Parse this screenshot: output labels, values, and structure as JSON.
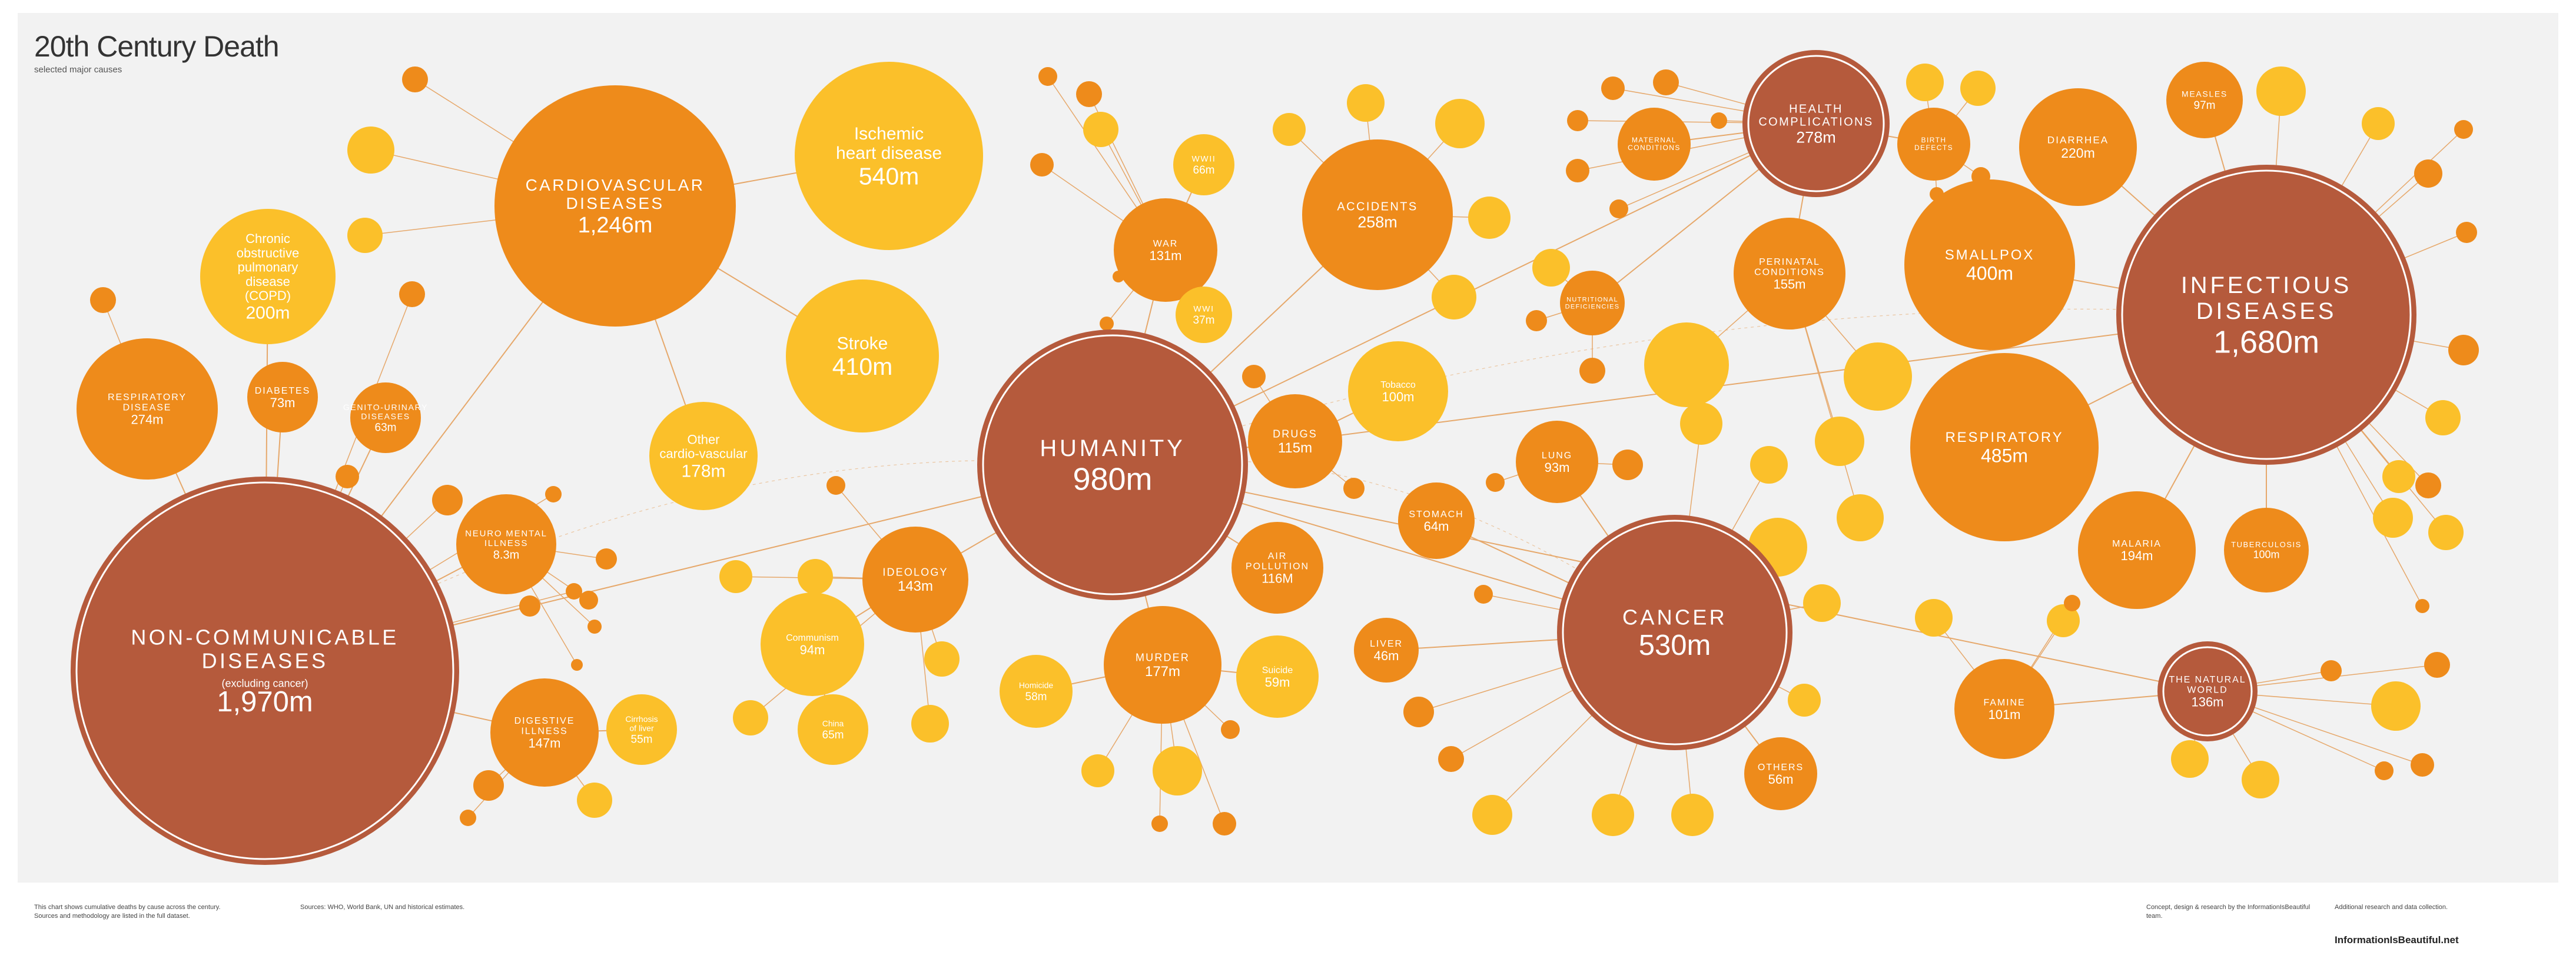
{
  "title": "20th Century Death",
  "subtitle": "selected major causes",
  "colors": {
    "dark": "#b55a3c",
    "orange": "#ee8b1b",
    "yellow": "#fbc02a",
    "link": "#e6a86b",
    "text_dark": "#ffffff",
    "text_light": "#ffffff"
  },
  "chart_data": {
    "type": "bubble",
    "nodes": [
      {
        "id": "humanity",
        "label": "HUMANITY",
        "value": "980m",
        "tier": "root"
      },
      {
        "id": "ncd",
        "label": "NON-COMMUNICABLE DISEASES",
        "sublabel": "(excluding cancer)",
        "value": "1,970m",
        "parent": "humanity",
        "tier": "major"
      },
      {
        "id": "cvd",
        "label": "CARDIOVASCULAR DISEASES",
        "value": "1,246m",
        "parent": "ncd",
        "tier": "mid"
      },
      {
        "id": "ihd",
        "label": "Ischemic heart disease",
        "value": "540m",
        "parent": "cvd",
        "tier": "minor"
      },
      {
        "id": "stroke",
        "label": "Stroke",
        "value": "410m",
        "parent": "cvd",
        "tier": "minor"
      },
      {
        "id": "othcv",
        "label": "Other cardio-vascular",
        "value": "178m",
        "parent": "cvd",
        "tier": "minor"
      },
      {
        "id": "copd",
        "label": "Chronic obstructive pulmonary disease (COPD)",
        "value": "200m",
        "parent": "ncd",
        "tier": "minor"
      },
      {
        "id": "resp_dis",
        "label": "RESPIRATORY DISEASE",
        "value": "274m",
        "parent": "ncd",
        "tier": "mid"
      },
      {
        "id": "diabetes",
        "label": "DIABETES",
        "value": "73m",
        "parent": "ncd",
        "tier": "mid"
      },
      {
        "id": "genito",
        "label": "GENITO-URINARY DISEASES",
        "value": "63m",
        "parent": "ncd",
        "tier": "mid"
      },
      {
        "id": "neuro",
        "label": "NEURO MENTAL ILLNESS",
        "value": "8.3m",
        "parent": "ncd",
        "tier": "mid"
      },
      {
        "id": "digest",
        "label": "DIGESTIVE ILLNESS",
        "value": "147m",
        "parent": "ncd",
        "tier": "mid"
      },
      {
        "id": "cirrh",
        "label": "Cirrhosis of liver",
        "value": "55m",
        "parent": "digest",
        "tier": "minor"
      },
      {
        "id": "inf",
        "label": "INFECTIOUS DISEASES",
        "value": "1,680m",
        "parent": "humanity",
        "tier": "major"
      },
      {
        "id": "smallpox",
        "label": "SMALLPOX",
        "value": "400m",
        "parent": "inf",
        "tier": "mid"
      },
      {
        "id": "respinf",
        "label": "RESPIRATORY",
        "value": "485m",
        "parent": "inf",
        "tier": "mid"
      },
      {
        "id": "diarrhea",
        "label": "DIARRHEA",
        "value": "220m",
        "parent": "inf",
        "tier": "mid"
      },
      {
        "id": "measles",
        "label": "MEASLES",
        "value": "97m",
        "parent": "inf",
        "tier": "mid"
      },
      {
        "id": "malaria",
        "label": "MALARIA",
        "value": "194m",
        "parent": "inf",
        "tier": "mid"
      },
      {
        "id": "tb",
        "label": "TUBERCULOSIS",
        "value": "100m",
        "parent": "inf",
        "tier": "mid"
      },
      {
        "id": "cancer",
        "label": "CANCER",
        "value": "530m",
        "parent": "humanity",
        "tier": "major"
      },
      {
        "id": "lung",
        "label": "LUNG",
        "value": "93m",
        "parent": "cancer",
        "tier": "mid"
      },
      {
        "id": "stomach",
        "label": "STOMACH",
        "value": "64m",
        "parent": "cancer",
        "tier": "mid"
      },
      {
        "id": "liver",
        "label": "LIVER",
        "value": "46m",
        "parent": "cancer",
        "tier": "mid"
      },
      {
        "id": "others",
        "label": "OTHERS",
        "value": "56m",
        "parent": "cancer",
        "tier": "mid"
      },
      {
        "id": "health",
        "label": "HEALTH COMPLICATIONS",
        "value": "278m",
        "parent": "humanity",
        "tier": "mid_dark"
      },
      {
        "id": "perinatal",
        "label": "PERINATAL CONDITIONS",
        "value": "155m",
        "parent": "health",
        "tier": "mid"
      },
      {
        "id": "maternal",
        "label": "MATERNAL CONDITIONS",
        "value": "",
        "parent": "health",
        "tier": "mid"
      },
      {
        "id": "birth",
        "label": "BIRTH DEFECTS",
        "value": "",
        "parent": "health",
        "tier": "mid"
      },
      {
        "id": "nutri",
        "label": "NUTRITIONAL DEFICIENCIES",
        "value": "",
        "parent": "health",
        "tier": "mid"
      },
      {
        "id": "natural",
        "label": "THE NATURAL WORLD",
        "value": "136m",
        "parent": "humanity",
        "tier": "mid_dark"
      },
      {
        "id": "famine",
        "label": "FAMINE",
        "value": "101m",
        "parent": "natural",
        "tier": "mid"
      },
      {
        "id": "war",
        "label": "WAR",
        "value": "131m",
        "parent": "humanity",
        "tier": "mid"
      },
      {
        "id": "ww2",
        "label": "WWII",
        "value": "66m",
        "parent": "war",
        "tier": "minor"
      },
      {
        "id": "ww1",
        "label": "WWI",
        "value": "37m",
        "parent": "war",
        "tier": "minor"
      },
      {
        "id": "accidents",
        "label": "ACCIDENTS",
        "value": "258m",
        "parent": "humanity",
        "tier": "mid"
      },
      {
        "id": "drugs",
        "label": "DRUGS",
        "value": "115m",
        "parent": "humanity",
        "tier": "mid"
      },
      {
        "id": "tobacco",
        "label": "Tobacco",
        "value": "100m",
        "parent": "drugs",
        "tier": "minor"
      },
      {
        "id": "airpol",
        "label": "AIR POLLUTION",
        "value": "116M",
        "parent": "humanity",
        "tier": "mid"
      },
      {
        "id": "ideology",
        "label": "IDEOLOGY",
        "value": "143m",
        "parent": "humanity",
        "tier": "mid"
      },
      {
        "id": "communism",
        "label": "Communism",
        "value": "94m",
        "parent": "ideology",
        "tier": "minor"
      },
      {
        "id": "china",
        "label": "China",
        "value": "65m",
        "parent": "communism",
        "tier": "minor"
      },
      {
        "id": "murder",
        "label": "MURDER",
        "value": "177m",
        "parent": "humanity",
        "tier": "mid"
      },
      {
        "id": "homicide",
        "label": "Homicide",
        "value": "58m",
        "parent": "murder",
        "tier": "minor"
      },
      {
        "id": "suicide",
        "label": "Suicide",
        "value": "59m",
        "parent": "murder",
        "tier": "minor"
      }
    ]
  },
  "footer": {
    "left": [
      "This chart shows cumulative deaths by cause across the century.",
      "Sources and methodology are listed in the full dataset."
    ],
    "middle": [
      "Sources: WHO, World Bank, UN and historical estimates."
    ],
    "right1": [
      "Concept, design & research by the InformationIsBeautiful team."
    ],
    "right2": [
      "Additional research and data collection.",
      "InformationIsBeautiful.net"
    ]
  },
  "site": "InformationIsBeautiful.net"
}
